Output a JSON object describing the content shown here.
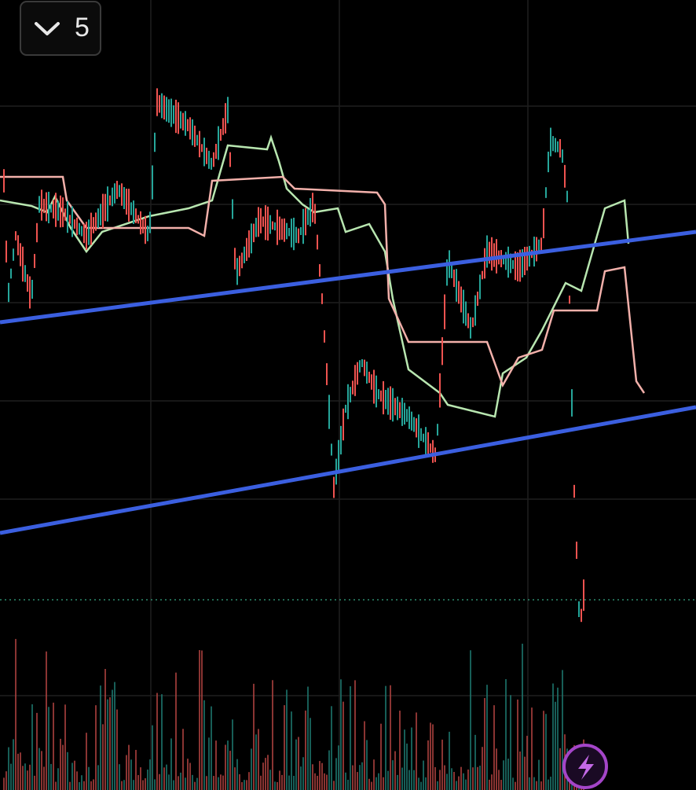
{
  "toolbar": {
    "interval_button": {
      "label": "5"
    }
  }
}
